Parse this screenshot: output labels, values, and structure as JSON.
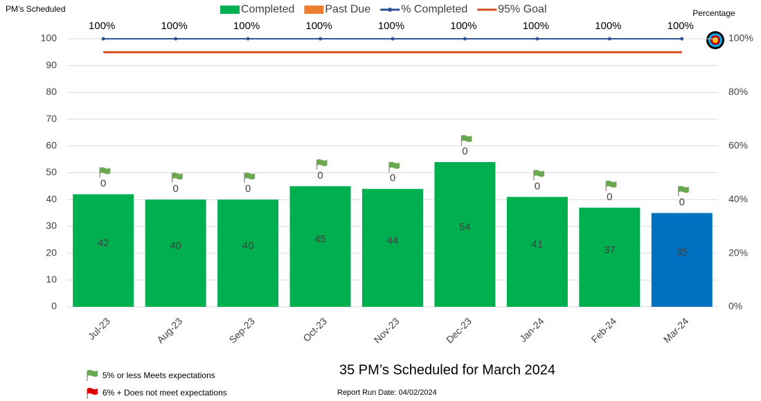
{
  "chart_data": {
    "type": "bar",
    "y_label": "PM’s Scheduled",
    "y2_label": "Percentage",
    "categories": [
      "Jul-23",
      "Aug-23",
      "Sep-23",
      "Oct-23",
      "Nov-23",
      "Dec-23",
      "Jan-24",
      "Feb-24",
      "Mar-24"
    ],
    "series": [
      {
        "name": "Completed",
        "type": "bar",
        "color": "#00b050",
        "colors": [
          "#00b050",
          "#00b050",
          "#00b050",
          "#00b050",
          "#00b050",
          "#00b050",
          "#00b050",
          "#00b050",
          "#0070c0"
        ],
        "values": [
          42,
          40,
          40,
          45,
          44,
          54,
          41,
          37,
          35
        ]
      },
      {
        "name": "Past Due",
        "type": "bar",
        "color": "#ed7d31",
        "values": [
          0,
          0,
          0,
          0,
          0,
          0,
          0,
          0,
          0
        ]
      },
      {
        "name": "% Completed",
        "type": "line",
        "axis": "y2",
        "color": "#2f5597",
        "marker": true,
        "values": [
          100,
          100,
          100,
          100,
          100,
          100,
          100,
          100,
          100
        ],
        "value_labels": [
          "100%",
          "100%",
          "100%",
          "100%",
          "100%",
          "100%",
          "100%",
          "100%",
          "100%"
        ]
      },
      {
        "name": "95% Goal",
        "type": "line",
        "axis": "y2",
        "color": "#d2501f",
        "marker": false,
        "values": [
          95,
          95,
          95,
          95,
          95,
          95,
          95,
          95,
          95
        ]
      }
    ],
    "ylim": [
      0,
      100
    ],
    "yticks": [
      0,
      10,
      20,
      30,
      40,
      50,
      60,
      70,
      80,
      90,
      100
    ],
    "y2lim": [
      0,
      100
    ],
    "y2ticks": [
      {
        "value": 0,
        "label": "0%"
      },
      {
        "value": 20,
        "label": "20%"
      },
      {
        "value": 40,
        "label": "40%"
      },
      {
        "value": 60,
        "label": "60%"
      },
      {
        "value": 80,
        "label": "80%"
      },
      {
        "value": 100,
        "label": "100%"
      }
    ],
    "grid": true,
    "legend": "top",
    "notes": [
      "5% or less Meets expectations",
      "6% + Does not meet expectations"
    ],
    "summary": "35 PM’s Scheduled for March 2024",
    "run_date": "Report Run Date: 04/02/2024"
  }
}
